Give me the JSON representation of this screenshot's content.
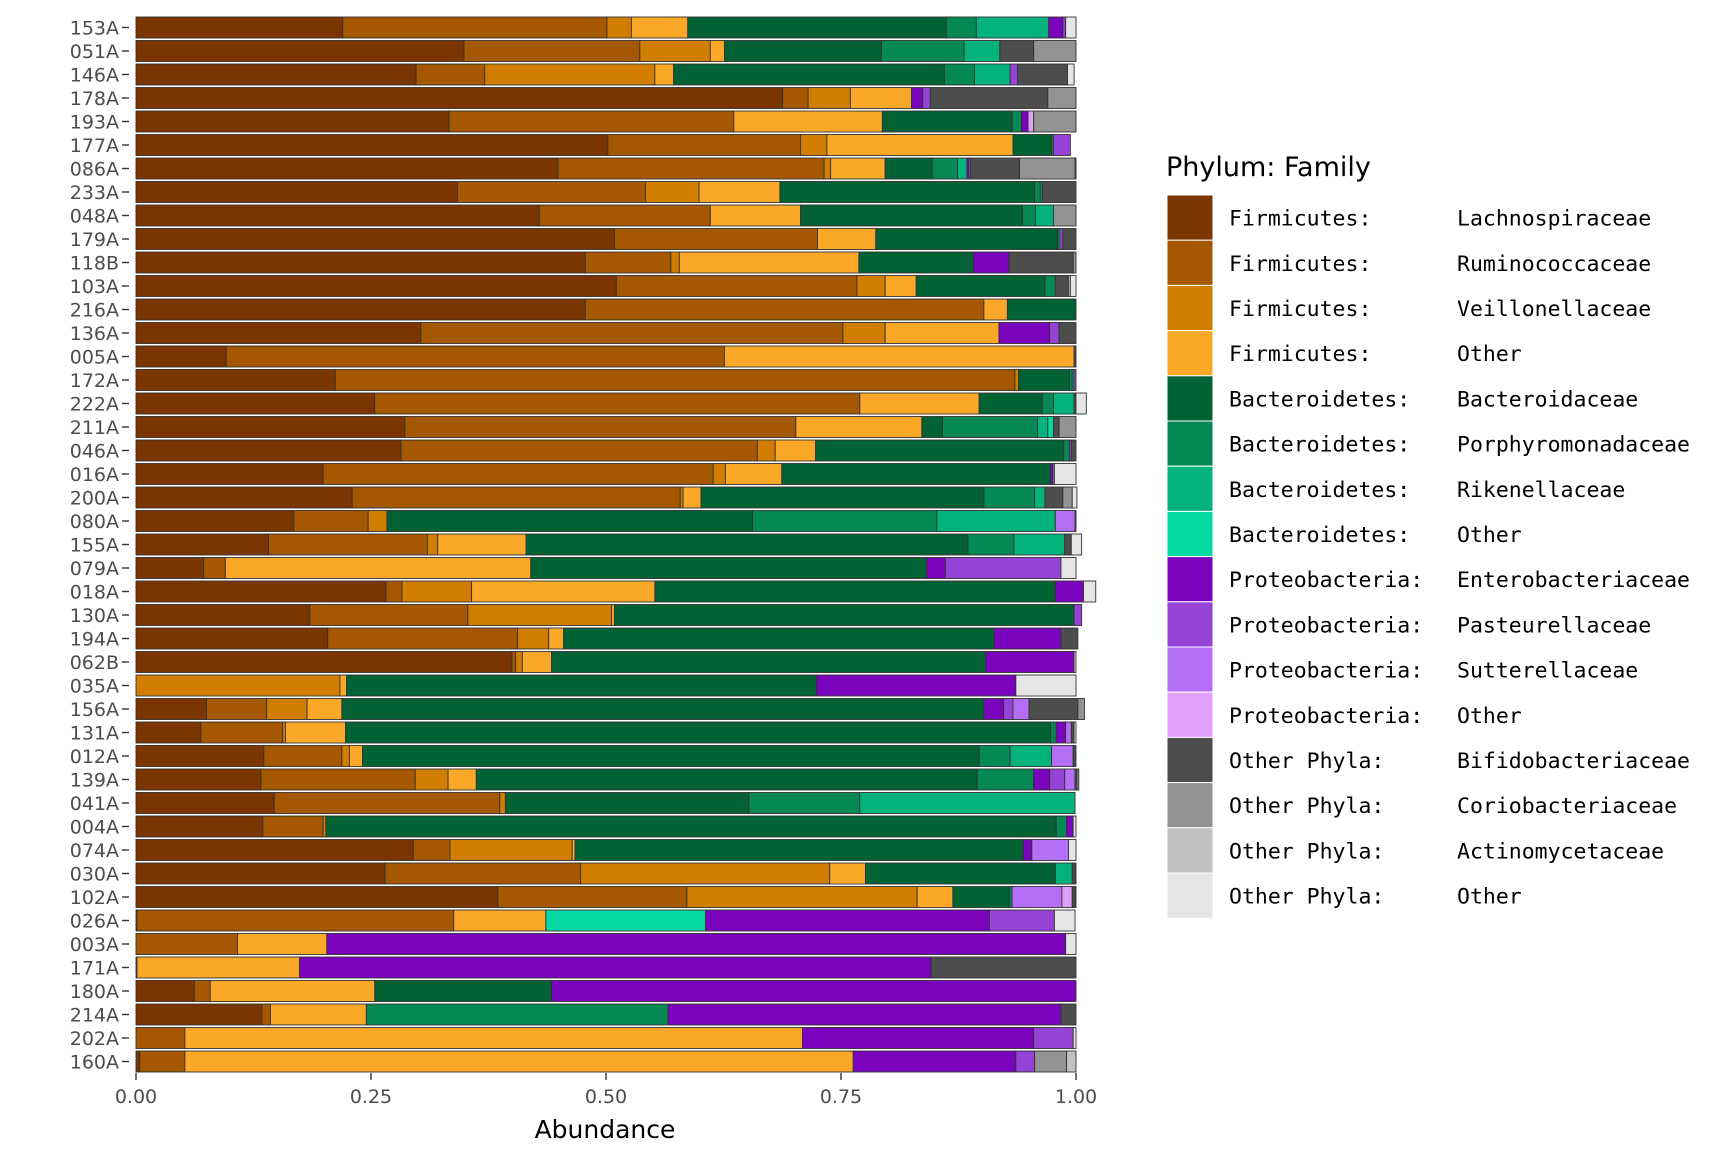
{
  "chart_data": {
    "type": "bar",
    "orientation": "horizontal",
    "stacked": true,
    "xlabel": "Abundance",
    "ylabel": "",
    "xlim": [
      0,
      1
    ],
    "x_ticks": [
      "0.00",
      "0.25",
      "0.50",
      "0.75",
      "1.00"
    ],
    "legend": {
      "title": "Phylum: Family",
      "placement": "right",
      "entries": [
        {
          "phylum": "Firmicutes:",
          "family": "Lachnospiraceae",
          "color": "#7A3500"
        },
        {
          "phylum": "Firmicutes:",
          "family": "Ruminococcaceae",
          "color": "#A55800"
        },
        {
          "phylum": "Firmicutes:",
          "family": "Veillonellaceae",
          "color": "#D07D00"
        },
        {
          "phylum": "Firmicutes:",
          "family": "Other",
          "color": "#FBA829"
        },
        {
          "phylum": "Bacteroidetes:",
          "family": "Bacteroidaceae",
          "color": "#036234"
        },
        {
          "phylum": "Bacteroidetes:",
          "family": "Porphyromonadaceae",
          "color": "#048954"
        },
        {
          "phylum": "Bacteroidetes:",
          "family": "Rikenellaceae",
          "color": "#04B27C"
        },
        {
          "phylum": "Bacteroidetes:",
          "family": "Other",
          "color": "#04D9A4"
        },
        {
          "phylum": "Proteobacteria:",
          "family": "Enterobacteriaceae",
          "color": "#7A04BE"
        },
        {
          "phylum": "Proteobacteria:",
          "family": "Pasteurellaceae",
          "color": "#9543D7"
        },
        {
          "phylum": "Proteobacteria:",
          "family": "Sutterellaceae",
          "color": "#B46FF6"
        },
        {
          "phylum": "Proteobacteria:",
          "family": "Other",
          "color": "#E0A0FC"
        },
        {
          "phylum": "Other Phyla:",
          "family": "Bifidobacteriaceae",
          "color": "#4D4D4D"
        },
        {
          "phylum": "Other Phyla:",
          "family": "Coriobacteriaceae",
          "color": "#939393"
        },
        {
          "phylum": "Other Phyla:",
          "family": "Actinomycetaceae",
          "color": "#C2C2C2"
        },
        {
          "phylum": "Other Phyla:",
          "family": "Other",
          "color": "#E5E5E5"
        }
      ]
    },
    "categories": [
      "153A",
      "051A",
      "146A",
      "178A",
      "193A",
      "177A",
      "086A",
      "233A",
      "048A",
      "179A",
      "118B",
      "103A",
      "216A",
      "136A",
      "005A",
      "172A",
      "222A",
      "211A",
      "046A",
      "016A",
      "200A",
      "080A",
      "155A",
      "079A",
      "018A",
      "130A",
      "194A",
      "062B",
      "035A",
      "156A",
      "131A",
      "012A",
      "139A",
      "041A",
      "004A",
      "074A",
      "030A",
      "102A",
      "026A",
      "003A",
      "171A",
      "180A",
      "214A",
      "202A",
      "160A"
    ],
    "rows": [
      [
        0.22,
        0.281,
        0.026,
        0.06,
        0.275,
        0.032,
        0.077,
        0,
        0.015,
        0.003,
        0,
        0,
        0,
        0,
        0,
        0.011
      ],
      [
        0.349,
        0.187,
        0.075,
        0.015,
        0.167,
        0.088,
        0.038,
        0,
        0,
        0,
        0,
        0,
        0.036,
        0.045,
        0,
        0
      ],
      [
        0.298,
        0.073,
        0.181,
        0.02,
        0.288,
        0.032,
        0.038,
        0,
        0,
        0.008,
        0,
        0,
        0.053,
        0,
        0,
        0.007
      ],
      [
        0.688,
        0.027,
        0.045,
        0.065,
        0,
        0,
        0,
        0,
        0.012,
        0.008,
        0,
        0,
        0.125,
        0.03,
        0,
        0
      ],
      [
        0.333,
        0.303,
        0,
        0.158,
        0.138,
        0.01,
        0,
        0,
        0.007,
        0,
        0,
        0.006,
        0,
        0.045,
        0,
        0
      ],
      [
        0.502,
        0.205,
        0.028,
        0.198,
        0.041,
        0.002,
        0,
        0,
        0,
        0.018,
        0,
        0,
        0,
        0,
        0,
        0
      ],
      [
        0.449,
        0.283,
        0.007,
        0.058,
        0.05,
        0.027,
        0.01,
        0,
        0.002,
        0.002,
        0,
        0,
        0.052,
        0.059,
        0,
        0.001
      ],
      [
        0.342,
        0.2,
        0.057,
        0.086,
        0.271,
        0.006,
        0.002,
        0,
        0,
        0,
        0,
        0,
        0.036,
        0,
        0,
        0
      ],
      [
        0.429,
        0.182,
        0,
        0.096,
        0.236,
        0.014,
        0.019,
        0,
        0,
        0,
        0,
        0,
        0,
        0.024,
        0,
        0
      ],
      [
        0.509,
        0.216,
        0,
        0.062,
        0.193,
        0.001,
        0.002,
        0,
        0,
        0.003,
        0,
        0,
        0.014,
        0,
        0,
        0
      ],
      [
        0.478,
        0.091,
        0.009,
        0.191,
        0.122,
        0,
        0,
        0,
        0.038,
        0,
        0,
        0,
        0.068,
        0.003,
        0,
        0
      ],
      [
        0.511,
        0.256,
        0.03,
        0.033,
        0.137,
        0.011,
        0,
        0,
        0,
        0,
        0,
        0,
        0.014,
        0,
        0.002,
        0.006
      ],
      [
        0.478,
        0.424,
        0,
        0.025,
        0.073,
        0,
        0,
        0,
        0,
        0,
        0,
        0,
        0,
        0,
        0,
        0
      ],
      [
        0.303,
        0.449,
        0.045,
        0.121,
        0,
        0,
        0,
        0,
        0.054,
        0.01,
        0,
        0,
        0.018,
        0,
        0,
        0
      ],
      [
        0.096,
        0.53,
        0,
        0.372,
        0,
        0,
        0,
        0,
        0,
        0,
        0,
        0,
        0.002,
        0,
        0,
        0
      ],
      [
        0.212,
        0.723,
        0.004,
        0,
        0.054,
        0.003,
        0.002,
        0,
        0,
        0.002,
        0,
        0,
        0,
        0,
        0,
        0
      ],
      [
        0.254,
        0.516,
        0,
        0.127,
        0.067,
        0.012,
        0.022,
        0,
        0,
        0,
        0,
        0,
        0.002,
        0,
        0,
        0.011
      ],
      [
        0.286,
        0.416,
        0,
        0.134,
        0.022,
        0.101,
        0.011,
        0.006,
        0,
        0,
        0,
        0,
        0.006,
        0.018,
        0,
        0
      ],
      [
        0.282,
        0.379,
        0.019,
        0.043,
        0.264,
        0.006,
        0,
        0,
        0,
        0.002,
        0,
        0,
        0.005,
        0,
        0,
        0
      ],
      [
        0.199,
        0.415,
        0.013,
        0.06,
        0.286,
        0,
        0,
        0,
        0.002,
        0.002,
        0,
        0,
        0,
        0,
        0,
        0.023
      ],
      [
        0.23,
        0.349,
        0.003,
        0.019,
        0.301,
        0.054,
        0.011,
        0,
        0,
        0,
        0,
        0,
        0.019,
        0.01,
        0,
        0.005
      ],
      [
        0.168,
        0.079,
        0.02,
        0,
        0.389,
        0.196,
        0.126,
        0,
        0,
        0,
        0.021,
        0,
        0,
        0,
        0,
        0.001
      ],
      [
        0.141,
        0.169,
        0.011,
        0.094,
        0.47,
        0.049,
        0.054,
        0,
        0,
        0,
        0,
        0,
        0.007,
        0,
        0,
        0.011
      ],
      [
        0.072,
        0.023,
        0,
        0.325,
        0.421,
        0,
        0,
        0,
        0.02,
        0.123,
        0,
        0,
        0,
        0,
        0,
        0.016
      ],
      [
        0.266,
        0.017,
        0.074,
        0.195,
        0.426,
        0,
        0,
        0,
        0.03,
        0,
        0,
        0,
        0,
        0,
        0,
        0.013
      ],
      [
        0.185,
        0.168,
        0.153,
        0.003,
        0.489,
        0,
        0,
        0,
        0,
        0.008,
        0,
        0,
        0,
        0,
        0,
        0
      ],
      [
        0.204,
        0.202,
        0.033,
        0.016,
        0.458,
        0,
        0,
        0,
        0.071,
        0,
        0,
        0,
        0.018,
        0,
        0,
        0
      ],
      [
        0.4,
        0.004,
        0.007,
        0.031,
        0.462,
        0,
        0,
        0,
        0.094,
        0,
        0,
        0,
        0,
        0,
        0,
        0.002
      ],
      [
        0,
        0,
        0.217,
        0.007,
        0.5,
        0,
        0,
        0,
        0.212,
        0,
        0,
        0,
        0,
        0,
        0,
        0.064
      ],
      [
        0.075,
        0.064,
        0.043,
        0.037,
        0.683,
        0,
        0,
        0,
        0.021,
        0.01,
        0.017,
        0,
        0.052,
        0.007,
        0,
        0
      ],
      [
        0.069,
        0.087,
        0.003,
        0.064,
        0.75,
        0.006,
        0,
        0,
        0.01,
        0,
        0.006,
        0,
        0.003,
        0,
        0,
        0.002
      ],
      [
        0.136,
        0.083,
        0.008,
        0.014,
        0.656,
        0.033,
        0.044,
        0,
        0,
        0,
        0.023,
        0,
        0.003,
        0,
        0,
        0
      ],
      [
        0.133,
        0.164,
        0.035,
        0.03,
        0.533,
        0.06,
        0,
        0,
        0.017,
        0.016,
        0.011,
        0,
        0.002,
        0.002,
        0,
        0
      ],
      [
        0.147,
        0.24,
        0.006,
        0,
        0.259,
        0.118,
        0.229,
        0,
        0,
        0,
        0,
        0,
        0,
        0,
        0,
        0
      ],
      [
        0.135,
        0.064,
        0.003,
        0,
        0.777,
        0.011,
        0,
        0,
        0.007,
        0,
        0,
        0,
        0,
        0,
        0,
        0.003
      ],
      [
        0.295,
        0.039,
        0.13,
        0.003,
        0.477,
        0,
        0,
        0,
        0.009,
        0,
        0.039,
        0,
        0,
        0,
        0,
        0.008
      ],
      [
        0.265,
        0.208,
        0.265,
        0.038,
        0.202,
        0,
        0.018,
        0,
        0,
        0,
        0,
        0,
        0.003,
        0,
        0,
        0.001
      ],
      [
        0.385,
        0.201,
        0.245,
        0.038,
        0.06,
        0.003,
        0,
        0,
        0,
        0,
        0.053,
        0.011,
        0.003,
        0,
        0,
        0.001
      ],
      [
        0.001,
        0.337,
        0,
        0.098,
        0,
        0,
        0,
        0.17,
        0.302,
        0.069,
        0,
        0,
        0,
        0,
        0,
        0.022
      ],
      [
        0,
        0.108,
        0,
        0.095,
        0,
        0,
        0,
        0,
        0.786,
        0,
        0,
        0,
        0,
        0,
        0,
        0.011
      ],
      [
        0.001,
        0,
        0,
        0.173,
        0,
        0,
        0,
        0,
        0.672,
        0,
        0,
        0,
        0.154,
        0,
        0,
        0
      ],
      [
        0.062,
        0.017,
        0,
        0.175,
        0.188,
        0,
        0,
        0,
        0.558,
        0,
        0,
        0,
        0,
        0,
        0,
        0
      ],
      [
        0.134,
        0.009,
        0,
        0.102,
        0,
        0.321,
        0,
        0,
        0.418,
        0,
        0,
        0,
        0.016,
        0,
        0,
        0
      ],
      [
        0,
        0.052,
        0,
        0.657,
        0,
        0,
        0,
        0,
        0.246,
        0.042,
        0,
        0,
        0,
        0,
        0,
        0.003
      ],
      [
        0.004,
        0.048,
        0,
        0.711,
        0,
        0,
        0,
        0,
        0.173,
        0.02,
        0,
        0,
        0,
        0.034,
        0.01,
        0
      ]
    ]
  }
}
